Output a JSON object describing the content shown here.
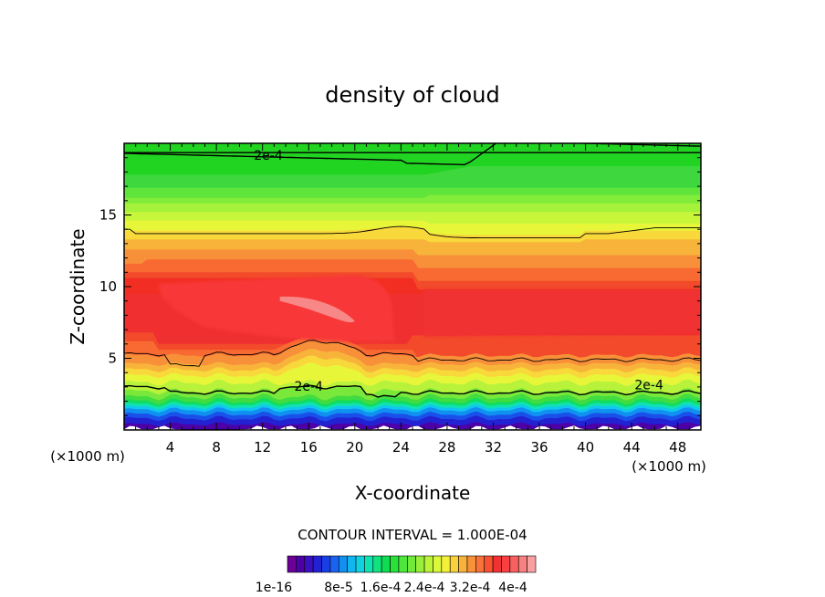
{
  "chart_data": {
    "type": "heatmap",
    "title": "density of cloud",
    "xlabel": "X-coordinate",
    "ylabel": "Z-coordinate",
    "x_unit": "(×1000 m)",
    "y_unit": "(×1000 m)",
    "xlim": [
      0,
      50
    ],
    "ylim": [
      0,
      20
    ],
    "x_ticks": [
      4,
      8,
      12,
      16,
      20,
      24,
      28,
      32,
      36,
      40,
      44,
      48
    ],
    "y_ticks": [
      5,
      10,
      15
    ],
    "contour_interval_text": "CONTOUR INTERVAL = 1.000E-04",
    "contour_labels": [
      {
        "text": "2e-4",
        "x": 12.5,
        "z": 19.1
      },
      {
        "text": "2e-4",
        "x": 16,
        "z": 3.0
      },
      {
        "text": "2e-4",
        "x": 45.5,
        "z": 3.1
      }
    ],
    "colorbar": {
      "colors": [
        "#6a0096",
        "#4d00a8",
        "#3a10c0",
        "#2222d2",
        "#1a3ee6",
        "#1a62f0",
        "#1090f0",
        "#10b6f0",
        "#10d2e2",
        "#10e2b0",
        "#10e27e",
        "#10dc52",
        "#28e23a",
        "#4ee63a",
        "#72ea3a",
        "#98f03a",
        "#bcf43a",
        "#dcf83a",
        "#f4f03a",
        "#f8d23a",
        "#f8b23a",
        "#f8923a",
        "#f8723a",
        "#f85232",
        "#f03232",
        "#f84040",
        "#f86060",
        "#f88080",
        "#f8a0a0"
      ],
      "tick_labels": [
        "1e-16",
        "8e-5",
        "1.6e-4",
        "2.4e-4",
        "3.2e-4",
        "4e-4"
      ]
    },
    "field": {
      "description": "cloud density, x 0–50 km, z 0–20 km",
      "peak_region": {
        "x": [
          3,
          25
        ],
        "z": [
          5,
          12
        ],
        "level": "~3.5e-4 to 4e-4"
      },
      "low_layer_z": [
        0.5,
        2.5
      ]
    }
  }
}
